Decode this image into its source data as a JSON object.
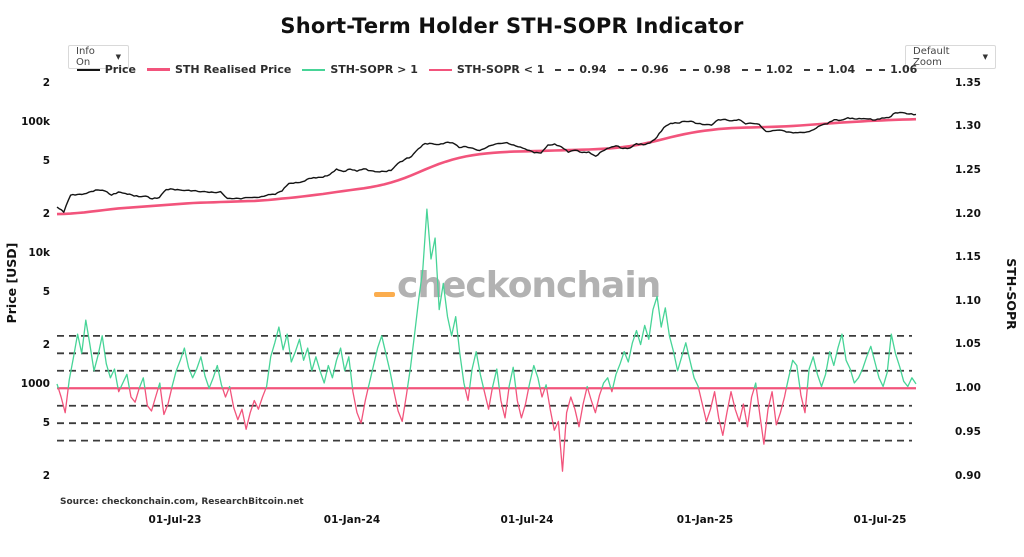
{
  "title": "Short-Term Holder STH-SOPR Indicator",
  "controls": {
    "info_dropdown_label": "Info On",
    "zoom_dropdown_label": "Default Zoom",
    "dropdown_arrow": "▼"
  },
  "watermark": {
    "text": "checkonchain",
    "text_color": "#b2b2b2",
    "dash_color": "#fbad4e"
  },
  "source_note": "Source: checkonchain.com, ResearchBitcoin.net",
  "colors": {
    "price": "#141414",
    "pink": "#f2547c",
    "green": "#47d497",
    "dashed_ref": "#3b3b3b"
  },
  "legend": [
    {
      "label": "Price",
      "color": "#141414",
      "style": "solid",
      "thickness": 2
    },
    {
      "label": "STH Realised Price",
      "color": "#f2547c",
      "style": "solid",
      "thickness": 3
    },
    {
      "label": "STH-SOPR > 1",
      "color": "#47d497",
      "style": "solid",
      "thickness": 2
    },
    {
      "label": "STH-SOPR < 1",
      "color": "#f2547c",
      "style": "solid",
      "thickness": 2
    },
    {
      "label": "0.94",
      "color": "#3b3b3b",
      "style": "dashed",
      "thickness": 2
    },
    {
      "label": "0.96",
      "color": "#3b3b3b",
      "style": "dashed",
      "thickness": 2
    },
    {
      "label": "0.98",
      "color": "#3b3b3b",
      "style": "dashed",
      "thickness": 2
    },
    {
      "label": "1.02",
      "color": "#3b3b3b",
      "style": "dashed",
      "thickness": 2
    },
    {
      "label": "1.04",
      "color": "#3b3b3b",
      "style": "dashed",
      "thickness": 2
    },
    {
      "label": "1.06",
      "color": "#3b3b3b",
      "style": "dashed",
      "thickness": 2
    }
  ],
  "axes": {
    "left_title": "Price [USD]",
    "right_title": "STH-SOPR",
    "left_ticks": [
      {
        "label": "2",
        "y": 83
      },
      {
        "label": "100k",
        "y": 122
      },
      {
        "label": "5",
        "y": 161
      },
      {
        "label": "2",
        "y": 214
      },
      {
        "label": "10k",
        "y": 253
      },
      {
        "label": "5",
        "y": 292
      },
      {
        "label": "2",
        "y": 345
      },
      {
        "label": "1000",
        "y": 384
      },
      {
        "label": "5",
        "y": 423
      },
      {
        "label": "2",
        "y": 476
      }
    ],
    "right_ticks": [
      {
        "label": "1.35",
        "y": 83
      },
      {
        "label": "1.30",
        "y": 126
      },
      {
        "label": "1.25",
        "y": 170
      },
      {
        "label": "1.20",
        "y": 214
      },
      {
        "label": "1.15",
        "y": 257
      },
      {
        "label": "1.10",
        "y": 301
      },
      {
        "label": "1.05",
        "y": 344
      },
      {
        "label": "1.00",
        "y": 388
      },
      {
        "label": "0.95",
        "y": 432
      },
      {
        "label": "0.90",
        "y": 476
      }
    ],
    "x_ticks": [
      {
        "label": "01-Jul-23",
        "x": 175
      },
      {
        "label": "01-Jan-24",
        "x": 352
      },
      {
        "label": "01-Jul-24",
        "x": 527
      },
      {
        "label": "01-Jan-25",
        "x": 705
      },
      {
        "label": "01-Jul-25",
        "x": 880
      }
    ]
  },
  "chart_data": {
    "type": "line",
    "title": "Short-Term Holder STH-SOPR Indicator",
    "x_axis": {
      "ticks": [
        "01-Jul-23",
        "01-Jan-24",
        "01-Jul-24",
        "01-Jan-25",
        "01-Jul-25"
      ],
      "span": "Mar-2023 to Aug-2025, sampled left-to-right"
    },
    "left_axis": {
      "label": "Price [USD]",
      "scale": "log",
      "range_usd": [
        200,
        200000
      ]
    },
    "right_axis": {
      "label": "STH-SOPR",
      "scale": "linear",
      "range": [
        0.9,
        1.35
      ]
    },
    "grid": {
      "solid_reference": 1.0,
      "dashed_references": [
        0.94,
        0.96,
        0.98,
        1.02,
        1.04,
        1.06
      ]
    },
    "legend_position": "top-center",
    "series": [
      {
        "name": "Price",
        "axis": "left",
        "color": "#141414",
        "units": "thousand USD",
        "values": [
          22.4,
          20.5,
          27.6,
          28.0,
          28.3,
          29.5,
          30.3,
          29.8,
          27.6,
          29.2,
          28.5,
          27.7,
          26.9,
          27.2,
          25.9,
          26.5,
          30.5,
          30.7,
          30.3,
          30.1,
          29.9,
          29.3,
          29.2,
          29.0,
          29.4,
          26.1,
          26.0,
          25.9,
          26.5,
          26.6,
          27.0,
          27.9,
          28.0,
          29.7,
          33.9,
          34.5,
          35.0,
          37.1,
          37.4,
          37.8,
          39.7,
          43.8,
          41.9,
          43.7,
          42.1,
          43.9,
          42.5,
          41.7,
          42.0,
          42.6,
          48.3,
          51.7,
          54.5,
          62.4,
          68.5,
          68.4,
          67.2,
          69.6,
          69.4,
          63.8,
          64.9,
          63.1,
          60.6,
          63.9,
          66.9,
          68.5,
          69.6,
          66.7,
          64.3,
          61.0,
          58.2,
          57.9,
          66.7,
          68.0,
          64.6,
          58.7,
          60.9,
          58.5,
          59.1,
          54.8,
          60.0,
          63.3,
          65.8,
          62.8,
          63.2,
          68.4,
          67.0,
          69.3,
          76.5,
          90.6,
          97.7,
          98.0,
          101.2,
          101.4,
          97.2,
          95.3,
          94.6,
          104.1,
          104.8,
          102.1,
          104.5,
          96.5,
          97.5,
          96.1,
          84.7,
          86.0,
          86.8,
          83.8,
          82.6,
          83.5,
          84.0,
          87.5,
          94.0,
          96.9,
          104.1,
          103.2,
          107.8,
          105.6,
          105.7,
          105.5,
          103.4,
          107.3,
          108.0,
          117.5,
          118.0,
          115.0,
          114.2
        ]
      },
      {
        "name": "STH Realised Price",
        "axis": "left",
        "color": "#f2547c",
        "units": "thousand USD",
        "values": [
          19.8,
          19.9,
          20.0,
          20.2,
          20.4,
          20.7,
          21.0,
          21.3,
          21.6,
          21.9,
          22.1,
          22.3,
          22.5,
          22.7,
          22.9,
          23.1,
          23.3,
          23.5,
          23.7,
          23.9,
          24.1,
          24.2,
          24.3,
          24.4,
          24.5,
          24.6,
          24.7,
          24.8,
          24.9,
          25.0,
          25.2,
          25.4,
          25.7,
          26.0,
          26.3,
          26.6,
          27.0,
          27.4,
          27.8,
          28.2,
          28.7,
          29.2,
          29.7,
          30.2,
          30.7,
          31.2,
          31.8,
          32.5,
          33.4,
          34.5,
          35.8,
          37.4,
          39.2,
          41.2,
          43.4,
          45.6,
          47.8,
          49.8,
          51.6,
          53.2,
          54.6,
          55.8,
          56.8,
          57.6,
          58.2,
          58.7,
          59.1,
          59.4,
          59.6,
          59.8,
          60.0,
          60.2,
          60.4,
          60.6,
          60.8,
          61.0,
          61.2,
          61.4,
          61.7,
          62.0,
          62.4,
          62.9,
          63.5,
          64.3,
          65.3,
          66.6,
          68.2,
          70.0,
          72.0,
          74.2,
          76.4,
          78.6,
          80.7,
          82.6,
          84.3,
          85.8,
          87.1,
          88.2,
          89.1,
          89.8,
          90.3,
          90.7,
          91.0,
          91.3,
          91.6,
          91.9,
          92.3,
          92.8,
          93.4,
          94.1,
          94.9,
          95.7,
          96.5,
          97.3,
          98.1,
          98.9,
          99.7,
          100.4,
          101.1,
          101.7,
          102.3,
          102.9,
          103.4,
          103.9,
          104.3,
          104.7,
          105.0
        ]
      },
      {
        "name": "STH-SOPR",
        "axis": "right",
        "color_above_1": "#47d497",
        "color_below_1": "#f2547c",
        "values": [
          1.005,
          0.99,
          0.972,
          1.01,
          1.035,
          1.062,
          1.04,
          1.078,
          1.05,
          1.02,
          1.038,
          1.06,
          1.028,
          1.012,
          1.022,
          0.996,
          1.006,
          1.016,
          0.99,
          0.984,
          1.0,
          1.012,
          0.98,
          0.974,
          0.99,
          1.006,
          0.97,
          0.982,
          1.002,
          1.02,
          1.032,
          1.046,
          1.024,
          1.012,
          1.022,
          1.036,
          1.014,
          1.0,
          1.012,
          1.026,
          1.004,
          0.99,
          1.002,
          0.978,
          0.964,
          0.976,
          0.953,
          0.972,
          0.986,
          0.976,
          0.99,
          1.002,
          1.036,
          1.052,
          1.07,
          1.044,
          1.062,
          1.03,
          1.042,
          1.056,
          1.032,
          1.046,
          1.02,
          1.036,
          1.02,
          1.006,
          1.026,
          1.012,
          1.032,
          1.046,
          1.02,
          1.036,
          0.996,
          0.972,
          0.96,
          0.986,
          1.006,
          1.026,
          1.046,
          1.06,
          1.04,
          1.02,
          0.996,
          0.974,
          0.962,
          0.992,
          1.024,
          1.062,
          1.102,
          1.136,
          1.205,
          1.148,
          1.172,
          1.09,
          1.12,
          1.082,
          1.06,
          1.082,
          1.04,
          1.006,
          0.986,
          1.022,
          1.042,
          1.016,
          0.996,
          0.976,
          1.002,
          1.022,
          0.986,
          0.966,
          1.002,
          1.024,
          0.986,
          0.966,
          0.982,
          1.006,
          1.026,
          1.012,
          0.99,
          1.004,
          0.976,
          0.952,
          0.962,
          0.905,
          0.972,
          0.99,
          0.976,
          0.956,
          0.982,
          1.002,
          0.986,
          0.972,
          0.992,
          1.006,
          1.012,
          0.996,
          1.016,
          1.028,
          1.042,
          1.03,
          1.052,
          1.066,
          1.05,
          1.072,
          1.056,
          1.09,
          1.105,
          1.07,
          1.092,
          1.06,
          1.042,
          1.02,
          1.036,
          1.052,
          1.032,
          1.012,
          1.002,
          0.982,
          0.962,
          0.976,
          0.996,
          0.966,
          0.946,
          0.972,
          0.996,
          0.976,
          0.962,
          0.982,
          0.956,
          0.99,
          1.006,
          0.97,
          0.936,
          0.976,
          0.996,
          0.958,
          0.972,
          0.99,
          1.012,
          1.032,
          1.026,
          0.992,
          0.972,
          1.022,
          1.036,
          1.016,
          1.002,
          1.016,
          1.042,
          1.026,
          1.046,
          1.062,
          1.032,
          1.022,
          1.006,
          1.012,
          1.022,
          1.036,
          1.048,
          1.03,
          1.012,
          1.002,
          1.018,
          1.062,
          1.04,
          1.025,
          1.008,
          1.002,
          1.012,
          1.005
        ]
      }
    ]
  }
}
